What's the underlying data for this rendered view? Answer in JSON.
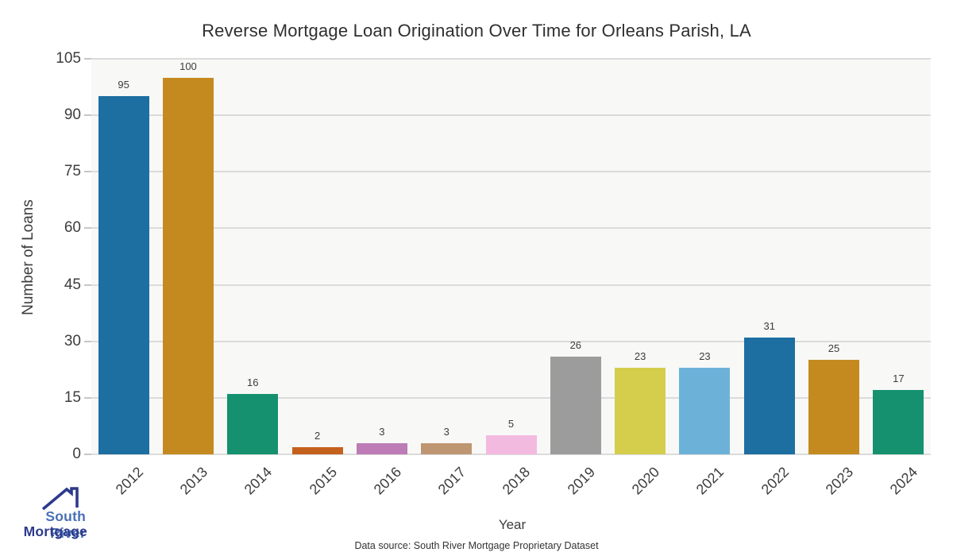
{
  "chart_data": {
    "type": "bar",
    "title": "Reverse Mortgage Loan Origination Over Time for Orleans Parish, LA",
    "xlabel": "Year",
    "ylabel": "Number of Loans",
    "categories": [
      "2012",
      "2013",
      "2014",
      "2015",
      "2016",
      "2017",
      "2018",
      "2019",
      "2020",
      "2021",
      "2022",
      "2023",
      "2024"
    ],
    "values": [
      95,
      100,
      16,
      2,
      3,
      3,
      5,
      26,
      23,
      23,
      31,
      25,
      17
    ],
    "bar_colors": [
      "#1d6ea1",
      "#c58a1f",
      "#15916f",
      "#c4611d",
      "#bd7cb5",
      "#bf9672",
      "#f3badf",
      "#9c9c9c",
      "#d5ce4c",
      "#6cb2d8",
      "#1d6ea1",
      "#c58a1f",
      "#15916f"
    ],
    "yticks": [
      0,
      15,
      30,
      45,
      60,
      75,
      90,
      105
    ],
    "ylim": [
      0,
      105
    ],
    "grid": true,
    "legend": "none",
    "plot_background": "#f8f8f7",
    "grid_color": "#dbdbdb"
  },
  "footer": {
    "source": "Data source: South River Mortgage Proprietary Dataset"
  },
  "logo": {
    "line1": "South River",
    "line2": "Mortgage",
    "line1_color": "#4a70b6",
    "line2_color": "#2c3a8c",
    "roof_color": "#2c3a8c"
  }
}
